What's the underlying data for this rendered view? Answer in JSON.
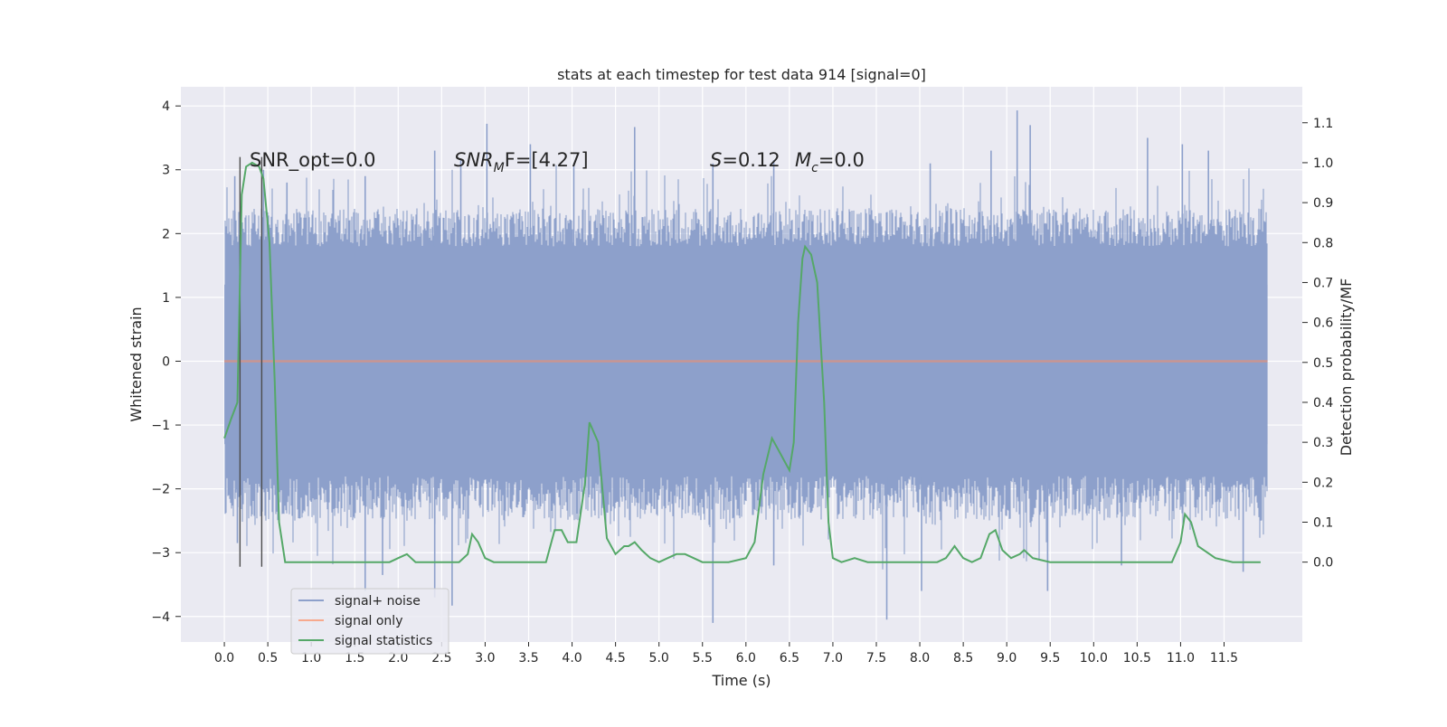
{
  "chart_data": {
    "type": "line",
    "title": "stats at each timestep for test data 914 [signal=0]",
    "xlabel": "Time (s)",
    "ylabel": "Whitened strain",
    "y2label": "Detection probability/MF",
    "xlim": [
      -0.5,
      12.4
    ],
    "ylim": [
      -4.4,
      4.3
    ],
    "y2lim": [
      -0.2,
      1.19
    ],
    "x_ticks": [
      0.0,
      0.5,
      1.0,
      1.5,
      2.0,
      2.5,
      3.0,
      3.5,
      4.0,
      4.5,
      5.0,
      5.5,
      6.0,
      6.5,
      7.0,
      7.5,
      8.0,
      8.5,
      9.0,
      9.5,
      10.0,
      10.5,
      11.0,
      11.5
    ],
    "y_ticks": [
      -4,
      -3,
      -2,
      -1,
      0,
      1,
      2,
      3,
      4
    ],
    "y2_ticks": [
      0.0,
      0.1,
      0.2,
      0.3,
      0.4,
      0.5,
      0.6,
      0.7,
      0.8,
      0.9,
      1.0,
      1.1
    ],
    "grid": true,
    "legend_position": "bottom-left",
    "legend": [
      "signal+ noise",
      "signal only",
      "signal statistics"
    ],
    "annotations": {
      "snr_opt": "SNR_opt=0.0",
      "snr_mf_base": "SNR",
      "snr_mf_sub": "M",
      "snr_mf_rest": "F=[4.27]",
      "s_sym": "S",
      "s_val": "=0.12",
      "mc_base": "M",
      "mc_sub": "c",
      "mc_val": "=0.0"
    },
    "signal_noise": {
      "color": "#8da0cb",
      "x_range": [
        0.0,
        12.0
      ],
      "core_band": [
        -1.3,
        1.2
      ],
      "typical_envelope": [
        -2.0,
        2.0
      ],
      "max": 3.93,
      "min": -4.1,
      "peaks": [
        {
          "x": 0.12,
          "y": 2.9
        },
        {
          "x": 0.45,
          "y": 3.0
        },
        {
          "x": 0.72,
          "y": 2.8
        },
        {
          "x": 1.62,
          "y": 2.9
        },
        {
          "x": 2.42,
          "y": 3.3
        },
        {
          "x": 2.72,
          "y": 3.15
        },
        {
          "x": 3.02,
          "y": 3.72
        },
        {
          "x": 3.52,
          "y": 3.4
        },
        {
          "x": 4.02,
          "y": 3.1
        },
        {
          "x": 4.72,
          "y": 3.67
        },
        {
          "x": 5.62,
          "y": 3.1
        },
        {
          "x": 6.32,
          "y": 3.15
        },
        {
          "x": 8.12,
          "y": 3.1
        },
        {
          "x": 8.82,
          "y": 3.3
        },
        {
          "x": 9.12,
          "y": 3.93
        },
        {
          "x": 9.27,
          "y": 3.7
        },
        {
          "x": 10.62,
          "y": 3.5
        },
        {
          "x": 11.02,
          "y": 3.4
        },
        {
          "x": 11.32,
          "y": 3.3
        }
      ],
      "troughs": [
        {
          "x": 0.15,
          "y": -2.85
        },
        {
          "x": 1.62,
          "y": -3.6
        },
        {
          "x": 1.82,
          "y": -3.35
        },
        {
          "x": 2.42,
          "y": -3.7
        },
        {
          "x": 2.62,
          "y": -3.83
        },
        {
          "x": 5.62,
          "y": -4.1
        },
        {
          "x": 6.32,
          "y": -3.2
        },
        {
          "x": 7.62,
          "y": -4.05
        },
        {
          "x": 8.02,
          "y": -3.6
        },
        {
          "x": 9.47,
          "y": -3.6
        },
        {
          "x": 10.32,
          "y": -3.2
        },
        {
          "x": 11.72,
          "y": -3.3
        }
      ]
    },
    "signal_only": {
      "color": "#fc8d62",
      "x": [
        0.0,
        12.0
      ],
      "y": [
        0.0,
        0.0
      ]
    },
    "signal_statistics": {
      "color": "#55a868",
      "x": [
        0.0,
        0.08,
        0.15,
        0.2,
        0.25,
        0.32,
        0.4,
        0.45,
        0.52,
        0.58,
        0.63,
        0.7,
        1.0,
        1.5,
        1.6,
        1.7,
        1.9,
        2.0,
        2.1,
        2.2,
        2.4,
        2.6,
        2.7,
        2.8,
        2.85,
        2.92,
        3.0,
        3.1,
        3.5,
        3.7,
        3.8,
        3.88,
        3.95,
        4.05,
        4.15,
        4.2,
        4.3,
        4.4,
        4.5,
        4.6,
        4.65,
        4.72,
        4.8,
        4.9,
        5.0,
        5.1,
        5.2,
        5.3,
        5.5,
        5.8,
        6.0,
        6.1,
        6.2,
        6.3,
        6.4,
        6.5,
        6.55,
        6.6,
        6.65,
        6.68,
        6.75,
        6.82,
        6.9,
        6.95,
        7.0,
        7.1,
        7.25,
        7.4,
        7.6,
        7.8,
        8.0,
        8.2,
        8.3,
        8.4,
        8.5,
        8.6,
        8.7,
        8.8,
        8.87,
        8.95,
        9.05,
        9.15,
        9.2,
        9.3,
        9.5,
        9.8,
        10.2,
        10.6,
        10.8,
        10.9,
        11.0,
        11.05,
        11.12,
        11.2,
        11.4,
        11.6,
        11.8,
        11.92
      ],
      "y": [
        0.31,
        0.36,
        0.4,
        0.92,
        0.99,
        1.0,
        0.99,
        0.96,
        0.8,
        0.45,
        0.1,
        0.0,
        0.0,
        0.0,
        0.0,
        0.0,
        0.0,
        0.01,
        0.02,
        0.0,
        0.0,
        0.0,
        0.0,
        0.02,
        0.07,
        0.05,
        0.01,
        0.0,
        0.0,
        0.0,
        0.08,
        0.08,
        0.05,
        0.05,
        0.2,
        0.35,
        0.3,
        0.06,
        0.02,
        0.04,
        0.04,
        0.05,
        0.03,
        0.01,
        0.0,
        0.01,
        0.02,
        0.02,
        0.0,
        0.0,
        0.01,
        0.05,
        0.22,
        0.31,
        0.27,
        0.23,
        0.3,
        0.6,
        0.76,
        0.79,
        0.77,
        0.7,
        0.4,
        0.1,
        0.01,
        0.0,
        0.01,
        0.0,
        0.0,
        0.0,
        0.0,
        0.0,
        0.01,
        0.04,
        0.01,
        0.0,
        0.01,
        0.07,
        0.08,
        0.03,
        0.01,
        0.02,
        0.03,
        0.01,
        0.0,
        0.0,
        0.0,
        0.0,
        0.0,
        0.0,
        0.05,
        0.12,
        0.1,
        0.04,
        0.01,
        0.0,
        0.0,
        0.0
      ]
    },
    "vertical_markers": {
      "color": "#4c4c4c",
      "x": [
        0.18,
        0.43
      ],
      "y_range": [
        -3.22,
        3.2
      ]
    }
  }
}
